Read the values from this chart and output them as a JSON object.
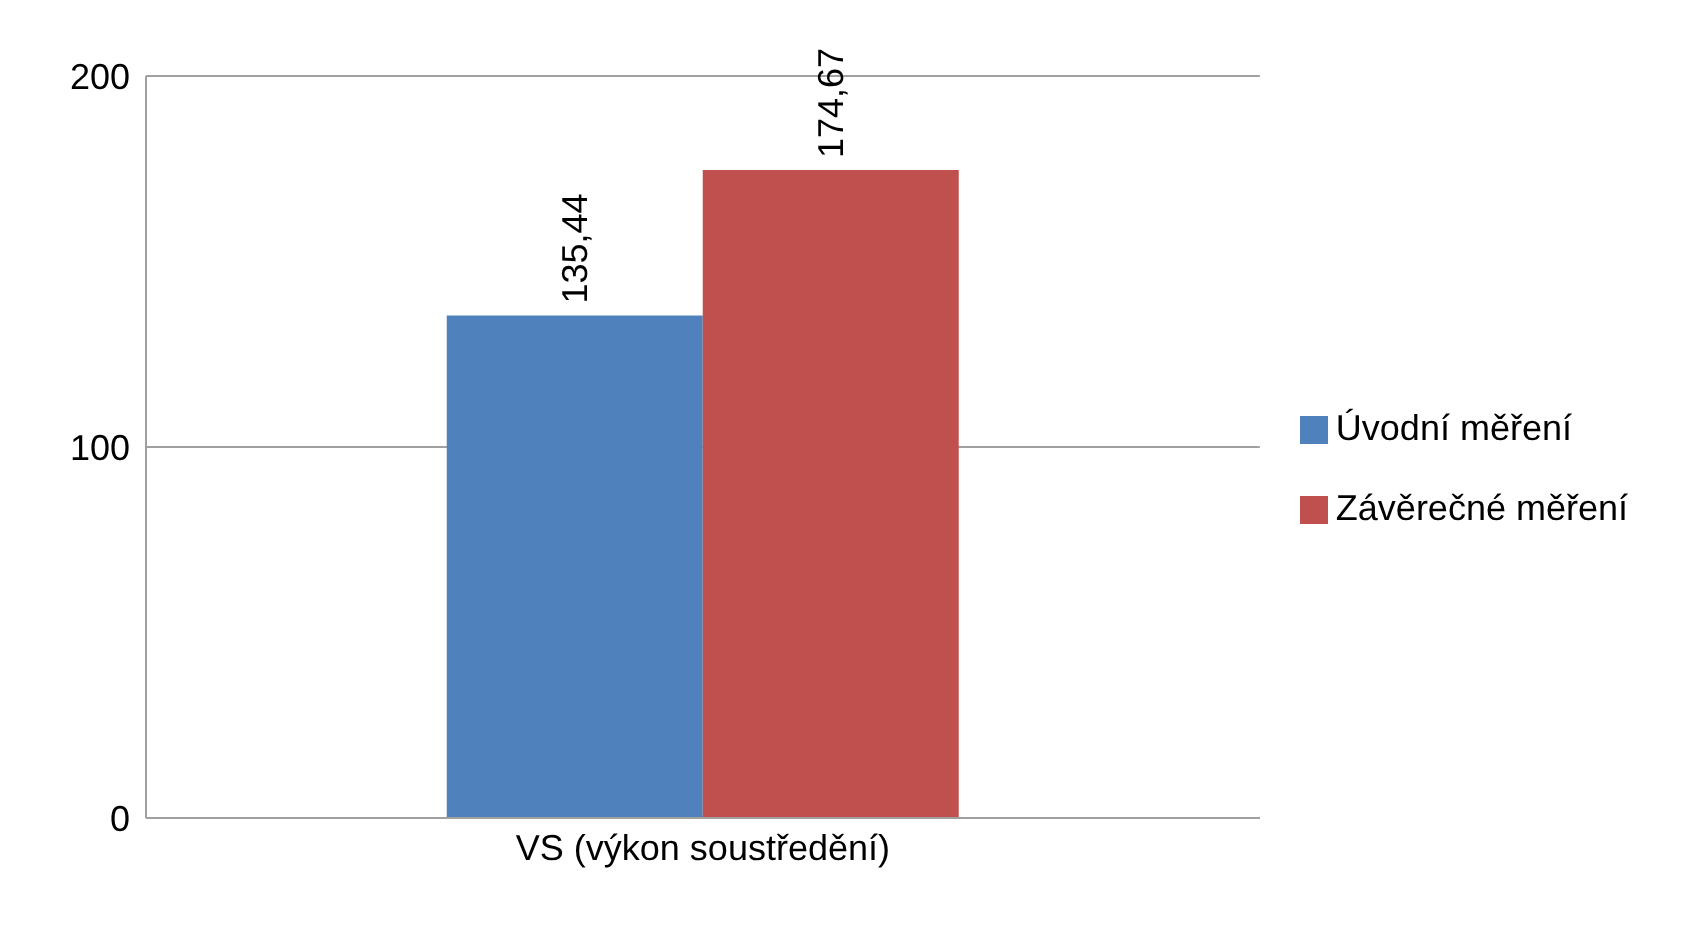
{
  "chart_data": {
    "type": "bar",
    "categories": [
      "VS (výkon soustředění)"
    ],
    "series": [
      {
        "name": "Úvodní měření",
        "color": "#4f81bd",
        "values": [
          135.44
        ],
        "value_labels": [
          "135,44"
        ]
      },
      {
        "name": "Závěrečné měření",
        "color": "#c0504d",
        "values": [
          174.67
        ],
        "value_labels": [
          "174,67"
        ]
      }
    ],
    "ylim": [
      0,
      200
    ],
    "yticks": [
      0,
      100,
      200
    ],
    "grid": "y",
    "legend": "right"
  }
}
